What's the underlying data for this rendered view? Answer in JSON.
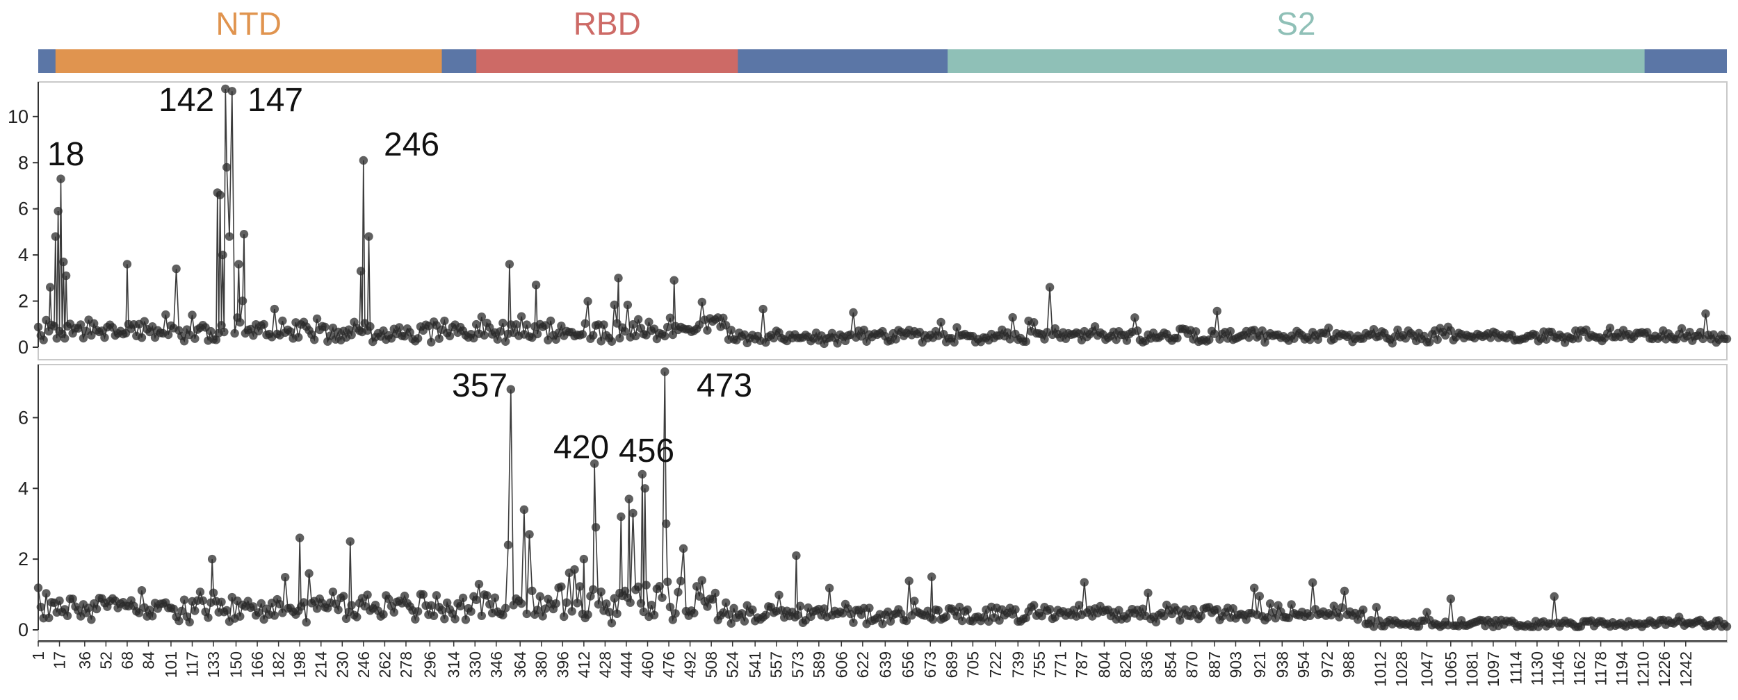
{
  "colors": {
    "NTD": "#e0944f",
    "RBD": "#cd6a66",
    "S2": "#8fc0b7",
    "linker": "#5b76a6",
    "points": "#2b2b2b"
  },
  "domains": [
    {
      "key": "NTD",
      "label": "NTD",
      "start": 14,
      "end": 305
    },
    {
      "key": "RBD",
      "label": "RBD",
      "start": 331,
      "end": 528
    },
    {
      "key": "S2",
      "label": "S2",
      "start": 686,
      "end": 1211
    }
  ],
  "chart_data": [
    {
      "type": "line",
      "panel": "top",
      "ylim": [
        0,
        11.5
      ],
      "yticks": [
        0,
        2,
        4,
        6,
        8,
        10
      ],
      "peak_labels": [
        "18",
        "142",
        "147",
        "246"
      ],
      "highlights": [
        [
          10,
          2.6
        ],
        [
          14,
          4.8
        ],
        [
          16,
          5.9
        ],
        [
          18,
          7.3
        ],
        [
          20,
          3.7
        ],
        [
          22,
          3.1
        ],
        [
          68,
          3.6
        ],
        [
          105,
          3.4
        ],
        [
          136,
          6.7
        ],
        [
          138,
          6.6
        ],
        [
          140,
          4.0
        ],
        [
          142,
          11.2
        ],
        [
          143,
          7.8
        ],
        [
          145,
          4.8
        ],
        [
          147,
          11.1
        ],
        [
          152,
          3.6
        ],
        [
          156,
          4.9
        ],
        [
          246,
          8.1
        ],
        [
          250,
          4.8
        ],
        [
          244,
          3.3
        ],
        [
          356,
          3.6
        ],
        [
          376,
          2.7
        ],
        [
          438,
          3.0
        ],
        [
          480,
          2.9
        ],
        [
          763,
          2.6
        ],
        [
          1241,
          0.4
        ]
      ]
    },
    {
      "type": "line",
      "panel": "bottom",
      "ylim": [
        0,
        7.5
      ],
      "yticks": [
        0,
        2,
        4,
        6
      ],
      "peak_labels": [
        "357",
        "420",
        "456",
        "473"
      ],
      "highlights": [
        [
          132,
          2.0
        ],
        [
          198,
          2.6
        ],
        [
          236,
          2.5
        ],
        [
          355,
          2.4
        ],
        [
          357,
          6.8
        ],
        [
          367,
          3.4
        ],
        [
          371,
          2.7
        ],
        [
          412,
          2.0
        ],
        [
          420,
          4.7
        ],
        [
          421,
          2.9
        ],
        [
          440,
          3.2
        ],
        [
          446,
          3.7
        ],
        [
          449,
          3.3
        ],
        [
          456,
          4.4
        ],
        [
          458,
          4.0
        ],
        [
          473,
          7.3
        ],
        [
          474,
          3.0
        ],
        [
          487,
          2.3
        ],
        [
          572,
          2.1
        ],
        [
          674,
          1.5
        ],
        [
          985,
          1.1
        ]
      ]
    }
  ],
  "x_ticks": [
    "1",
    "17",
    "36",
    "52",
    "68",
    "84",
    "101",
    "117",
    "133",
    "150",
    "166",
    "182",
    "198",
    "214",
    "230",
    "246",
    "262",
    "278",
    "296",
    "314",
    "330",
    "346",
    "364",
    "380",
    "396",
    "412",
    "428",
    "444",
    "460",
    "476",
    "492",
    "508",
    "524",
    "541",
    "557",
    "573",
    "589",
    "606",
    "622",
    "639",
    "656",
    "673",
    "689",
    "705",
    "722",
    "739",
    "755",
    "771",
    "787",
    "804",
    "820",
    "836",
    "854",
    "870",
    "887",
    "903",
    "921",
    "938",
    "954",
    "972",
    "988",
    "1012",
    "1028",
    "1047",
    "1065",
    "1081",
    "1097",
    "1114",
    "1130",
    "1146",
    "1162",
    "1178",
    "1194",
    "1210",
    "1226",
    "1242"
  ]
}
